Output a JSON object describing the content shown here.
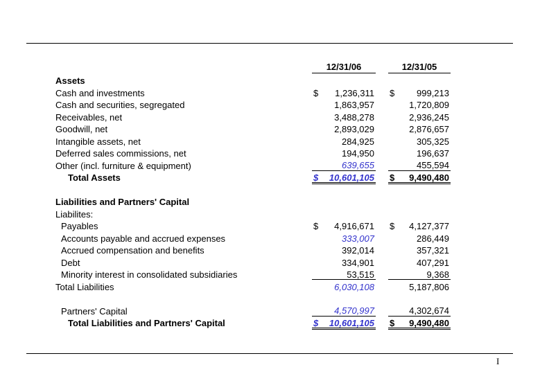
{
  "page": {
    "marker": "I"
  },
  "colors": {
    "accent_blue": "#3333cc"
  },
  "header": {
    "col1": "12/31/06",
    "col2": "12/31/05"
  },
  "rows": [
    {
      "label": "Assets",
      "bold": true
    },
    {
      "label": "Cash and investments",
      "c1": {
        "d": "$",
        "v": "1,236,311"
      },
      "c2": {
        "d": "$",
        "v": "999,213"
      }
    },
    {
      "label": "Cash and securities, segregated",
      "c1": {
        "v": "1,863,957"
      },
      "c2": {
        "v": "1,720,809"
      }
    },
    {
      "label": "Receivables, net",
      "c1": {
        "v": "3,488,278"
      },
      "c2": {
        "v": "2,936,245"
      }
    },
    {
      "label": "Goodwill, net",
      "c1": {
        "v": "2,893,029"
      },
      "c2": {
        "v": "2,876,657"
      }
    },
    {
      "label": "Intangible assets, net",
      "c1": {
        "v": "284,925"
      },
      "c2": {
        "v": "305,325"
      }
    },
    {
      "label": "Deferred sales commissions, net",
      "c1": {
        "v": "194,950"
      },
      "c2": {
        "v": "196,637"
      }
    },
    {
      "label": "Other (incl. furniture & equipment)",
      "c1": {
        "v": "639,655",
        "style": "bi ul"
      },
      "c2": {
        "v": "455,594",
        "style": "ul"
      }
    },
    {
      "label": "Total Assets",
      "bold": true,
      "indent": 2,
      "c1": {
        "d": "$",
        "v": "10,601,105",
        "style": "bi bold dul"
      },
      "c2": {
        "d": "$",
        "v": "9,490,480",
        "style": "bold dul"
      }
    },
    {
      "spacer": true
    },
    {
      "label": "Liabilities and Partners' Capital",
      "bold": true
    },
    {
      "label": "Liabilites:"
    },
    {
      "label": "Payables",
      "indent": 1,
      "c1": {
        "d": "$",
        "v": "4,916,671"
      },
      "c2": {
        "d": "$",
        "v": "4,127,377"
      }
    },
    {
      "label": "Accounts payable and accrued expenses",
      "indent": 1,
      "c1": {
        "v": "333,007",
        "style": "bi"
      },
      "c2": {
        "v": "286,449"
      }
    },
    {
      "label": "Accrued compensation and benefits",
      "indent": 1,
      "c1": {
        "v": "392,014"
      },
      "c2": {
        "v": "357,321"
      }
    },
    {
      "label": "Debt",
      "indent": 1,
      "c1": {
        "v": "334,901"
      },
      "c2": {
        "v": "407,291"
      }
    },
    {
      "label": "Minority interest in consolidated subsidiaries",
      "indent": 1,
      "c1": {
        "v": "53,515",
        "style": "ul"
      },
      "c2": {
        "v": "9,368",
        "style": "ul"
      }
    },
    {
      "label": "Total Liabilities",
      "c1": {
        "v": "6,030,108",
        "style": "bi"
      },
      "c2": {
        "v": "5,187,806"
      }
    },
    {
      "spacer": true
    },
    {
      "label": "Partners' Capital",
      "indent": 1,
      "c1": {
        "v": "4,570,997",
        "style": "bi ul"
      },
      "c2": {
        "v": "4,302,674",
        "style": "ul"
      }
    },
    {
      "label": "Total Liabilities and Partners' Capital",
      "bold": true,
      "indent": 2,
      "c1": {
        "d": "$",
        "v": "10,601,105",
        "style": "bi bold dul"
      },
      "c2": {
        "d": "$",
        "v": "9,490,480",
        "style": "bold dul"
      }
    }
  ]
}
